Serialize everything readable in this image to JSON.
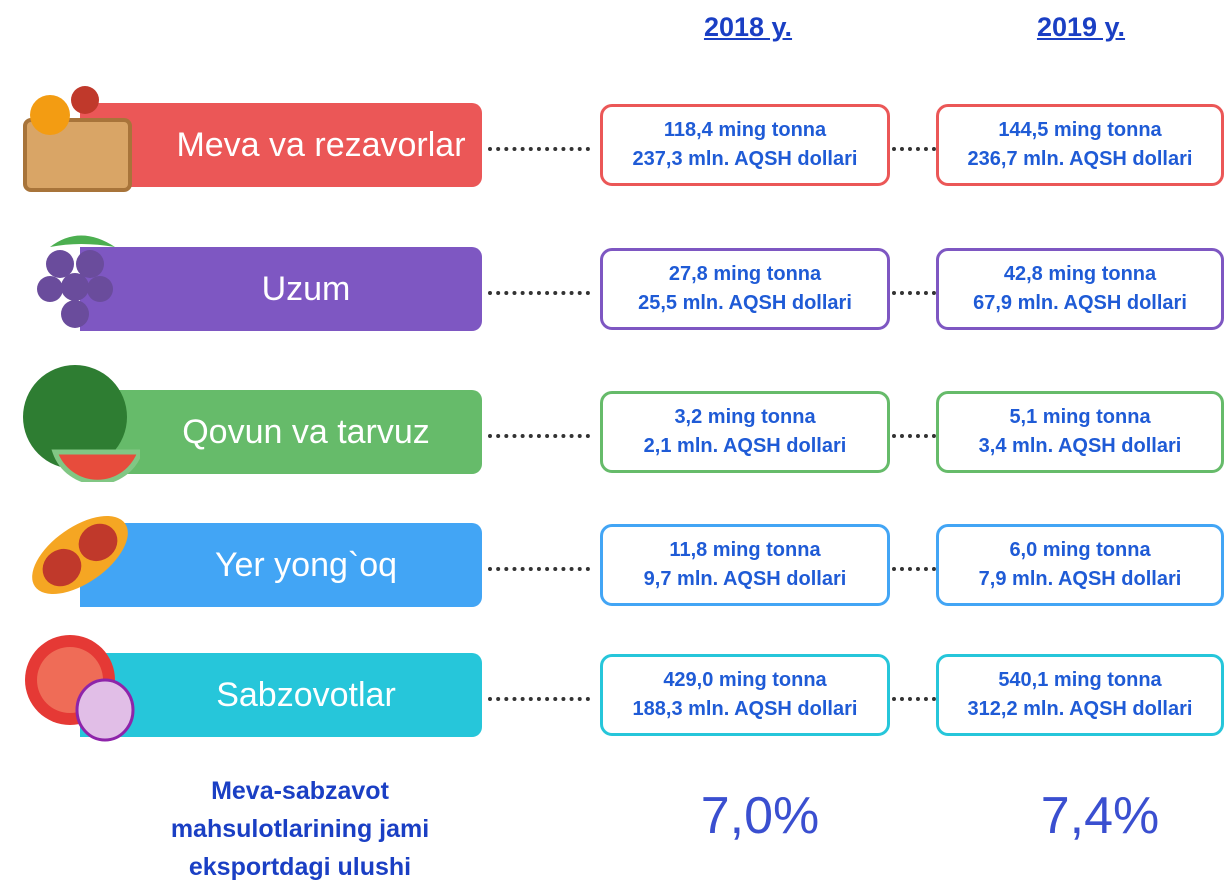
{
  "header": {
    "years": [
      "2018 y.",
      "2019 y."
    ]
  },
  "rows": [
    {
      "label": "Meva va rezavorlar",
      "color": "#eb5757",
      "values": [
        [
          "118,4 ming tonna",
          "237,3 mln. AQSH dollari"
        ],
        [
          "144,5 ming tonna",
          "236,7 mln. AQSH dollari"
        ]
      ]
    },
    {
      "label": "Uzum",
      "color": "#7e57c2",
      "values": [
        [
          "27,8 ming tonna",
          "25,5 mln. AQSH dollari"
        ],
        [
          "42,8 ming tonna",
          "67,9 mln. AQSH dollari"
        ]
      ]
    },
    {
      "label": "Qovun va tarvuz",
      "color": "#66bb6a",
      "values": [
        [
          "3,2 ming tonna",
          "2,1 mln. AQSH dollari"
        ],
        [
          "5,1 ming tonna",
          "3,4 mln. AQSH dollari"
        ]
      ]
    },
    {
      "label": "Yer yong`oq",
      "color": "#42a5f5",
      "values": [
        [
          "11,8 ming tonna",
          "9,7 mln. AQSH dollari"
        ],
        [
          "6,0 ming tonna",
          "7,9 mln. AQSH dollari"
        ]
      ]
    },
    {
      "label": "Sabzovotlar",
      "color": "#26c6da",
      "values": [
        [
          "429,0 ming tonna",
          "188,3 mln. AQSH dollari"
        ],
        [
          "540,1 ming tonna",
          "312,2 mln. AQSH dollari"
        ]
      ]
    }
  ],
  "footer": {
    "label": [
      "Meva-sabzavot",
      "mahsulotlarining jami",
      "eksportdagi ulushi"
    ],
    "shares": [
      "7,0%",
      "7,4%"
    ]
  }
}
